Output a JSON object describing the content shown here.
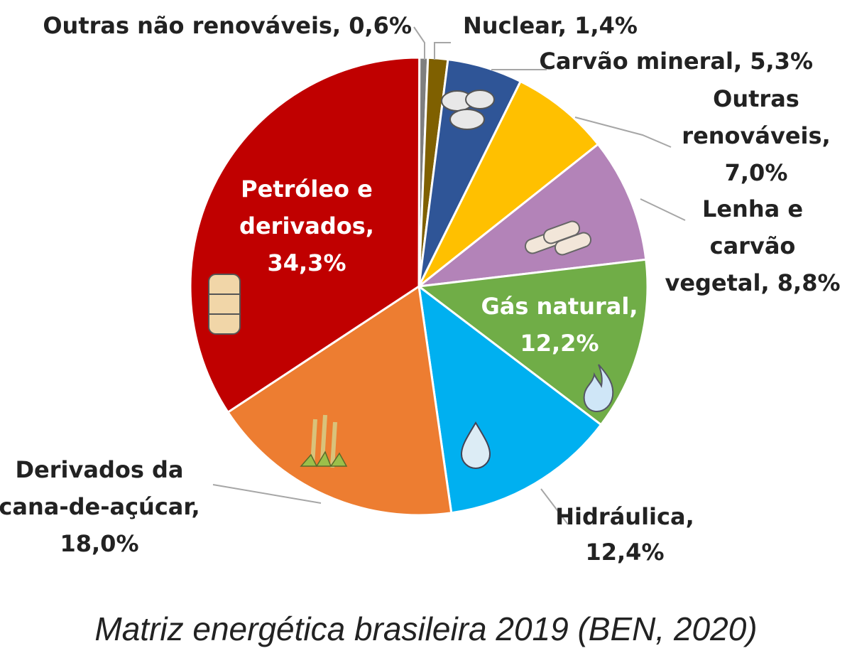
{
  "chart_data": {
    "type": "pie",
    "title": "",
    "caption": "Matriz energética brasileira 2019 (BEN, 2020)",
    "slices": [
      {
        "label_lines": [
          "Outras não renováveis, 0,6%"
        ],
        "value": 0.6,
        "color": "#7f7f7f",
        "icon": "none"
      },
      {
        "label_lines": [
          "Nuclear, 1,4%"
        ],
        "value": 1.4,
        "color": "#7f6000",
        "icon": "none"
      },
      {
        "label_lines": [
          "Carvão mineral, 5,3%"
        ],
        "value": 5.3,
        "color": "#2f5597",
        "icon": "coal-icon"
      },
      {
        "label_lines": [
          "Outras",
          "renováveis,",
          "7,0%"
        ],
        "value": 7.0,
        "color": "#ffc000",
        "icon": "none"
      },
      {
        "label_lines": [
          "Lenha e",
          "carvão",
          "vegetal, 8,8%"
        ],
        "value": 8.8,
        "color": "#b383b8",
        "icon": "firewood-icon"
      },
      {
        "label_lines": [
          "Gás natural,",
          "12,2%"
        ],
        "value": 12.2,
        "color": "#70ad47",
        "icon": "flame-icon"
      },
      {
        "label_lines": [
          "Hidráulica,",
          "12,4%"
        ],
        "value": 12.4,
        "color": "#00b0f0",
        "icon": "water-drop-icon"
      },
      {
        "label_lines": [
          "Derivados da",
          "cana-de-açúcar,",
          "18,0%"
        ],
        "value": 18.0,
        "color": "#ed7d31",
        "icon": "sugarcane-icon"
      },
      {
        "label_lines": [
          "Petróleo e",
          "derivados,",
          "34,3%"
        ],
        "value": 34.3,
        "color": "#c00000",
        "icon": "oil-barrel-icon"
      }
    ]
  }
}
